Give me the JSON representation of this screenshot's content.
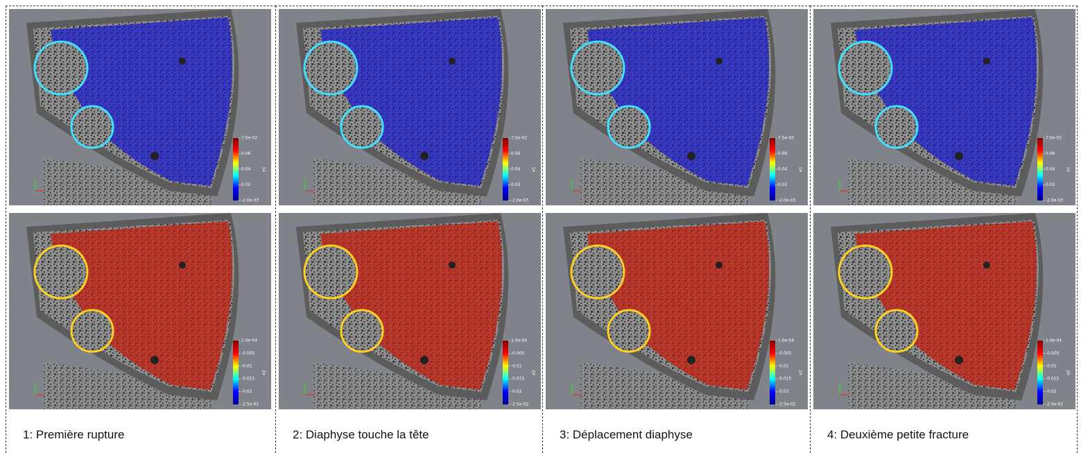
{
  "panels": [
    {
      "caption": "1: Première rupture"
    },
    {
      "caption": "2: Diaphyse touche la tête"
    },
    {
      "caption": "3: Déplacement diaphyse"
    },
    {
      "caption": "4: Deuxième petite fracture"
    }
  ],
  "colorbars": [
    {
      "ticks": [
        "7.5e-02",
        "0.06",
        "0.04",
        "0.02",
        "-2.0e-03"
      ],
      "label": "e1"
    },
    {
      "ticks": [
        "1.0e-04",
        "-0.005",
        "-0.01",
        "-0.015",
        "-0.02",
        "-2.5e-02"
      ],
      "label": "e2"
    }
  ]
}
